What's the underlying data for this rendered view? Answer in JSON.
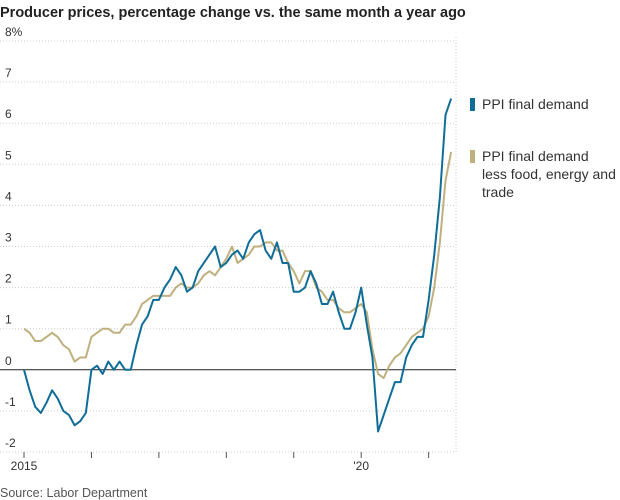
{
  "chart_data": {
    "type": "line",
    "title": "Producer prices, percentage change vs. the same month a year ago",
    "source": "Source: Labor Department",
    "categories": [
      "2015",
      null,
      null,
      null,
      null,
      null,
      null,
      null,
      null,
      null,
      null,
      null,
      null,
      null,
      null,
      null,
      null,
      null,
      null,
      null,
      null,
      null,
      null,
      null,
      null,
      null,
      null,
      null,
      null,
      null,
      null,
      null,
      null,
      null,
      null,
      null,
      null,
      null,
      null,
      null,
      null,
      null,
      null,
      null,
      null,
      null,
      null,
      null,
      null,
      null,
      null,
      null,
      null,
      null,
      null,
      null,
      null,
      null,
      null,
      null,
      "'20",
      null,
      null,
      null,
      null,
      null,
      null,
      null,
      null,
      null,
      null,
      null,
      null,
      null,
      null,
      null,
      null
    ],
    "series": [
      {
        "name": "PPI final demand",
        "color": "#0f6d98",
        "values": [
          0.0,
          -0.5,
          -0.9,
          -1.05,
          -0.8,
          -0.5,
          -0.7,
          -1.0,
          -1.1,
          -1.35,
          -1.25,
          -1.05,
          0.0,
          0.1,
          -0.1,
          0.2,
          0.0,
          0.2,
          0.0,
          0.0,
          0.6,
          1.1,
          1.3,
          1.7,
          1.7,
          2.0,
          2.2,
          2.5,
          2.3,
          1.9,
          2.0,
          2.4,
          2.6,
          2.8,
          3.0,
          2.5,
          2.6,
          2.8,
          2.9,
          2.7,
          3.1,
          3.3,
          3.4,
          2.9,
          2.7,
          3.1,
          2.6,
          2.6,
          1.9,
          1.9,
          2.0,
          2.4,
          2.1,
          1.6,
          1.6,
          1.9,
          1.4,
          1.0,
          1.0,
          1.4,
          2.0,
          1.1,
          0.3,
          -1.5,
          -1.1,
          -0.7,
          -0.3,
          -0.3,
          0.3,
          0.6,
          0.8,
          0.8,
          1.7,
          2.8,
          4.2,
          6.2,
          6.6
        ]
      },
      {
        "name": "PPI final demand less food, energy and trade",
        "color": "#bfb07f",
        "values": [
          1.0,
          0.9,
          0.7,
          0.7,
          0.8,
          0.9,
          0.8,
          0.6,
          0.5,
          0.2,
          0.3,
          0.3,
          0.8,
          0.9,
          1.0,
          1.0,
          0.9,
          0.9,
          1.1,
          1.1,
          1.3,
          1.6,
          1.7,
          1.8,
          1.8,
          1.8,
          1.8,
          2.0,
          2.1,
          2.0,
          2.0,
          2.1,
          2.3,
          2.4,
          2.3,
          2.5,
          2.7,
          3.0,
          2.6,
          2.7,
          2.8,
          3.0,
          3.0,
          3.1,
          3.1,
          2.9,
          2.9,
          2.6,
          2.4,
          2.1,
          2.4,
          2.4,
          2.0,
          1.9,
          1.7,
          1.7,
          1.5,
          1.4,
          1.4,
          1.5,
          1.6,
          1.4,
          0.5,
          -0.1,
          -0.2,
          0.1,
          0.3,
          0.4,
          0.6,
          0.8,
          0.9,
          1.0,
          1.3,
          2.0,
          3.1,
          4.6,
          5.3
        ]
      }
    ],
    "ylim": [
      -2,
      8
    ],
    "yticks": [
      -2,
      -1,
      0,
      1,
      2,
      3,
      4,
      5,
      6,
      7,
      {
        "value": 8,
        "label": "8%"
      }
    ],
    "grid": true
  }
}
